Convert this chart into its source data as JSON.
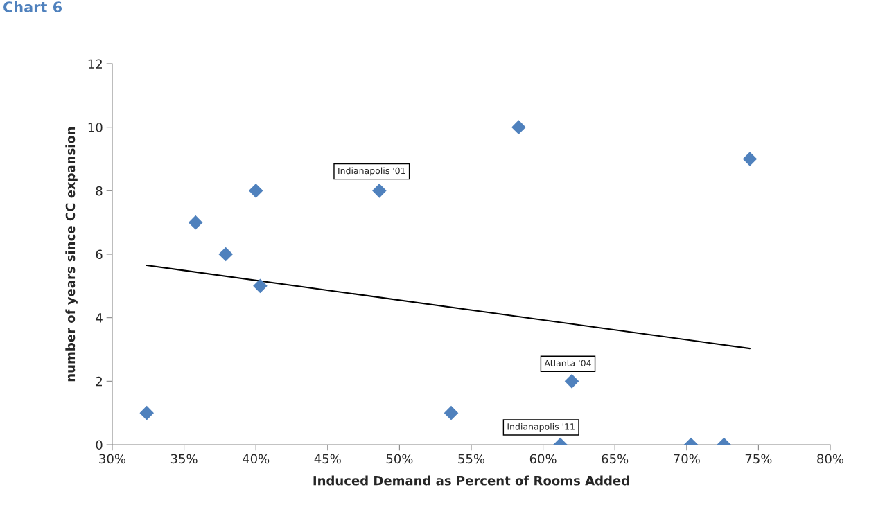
{
  "chart_data": {
    "type": "scatter",
    "title": "Chart 6",
    "xlabel": "Induced Demand as Percent of Rooms Added",
    "ylabel": "number of years since CC expansion",
    "marker": "diamond",
    "grid": false,
    "legend": false,
    "xlim": [
      30,
      80
    ],
    "xticks": [
      {
        "value": 30,
        "label": "30%"
      },
      {
        "value": 35,
        "label": "35%"
      },
      {
        "value": 40,
        "label": "40%"
      },
      {
        "value": 45,
        "label": "45%"
      },
      {
        "value": 50,
        "label": "50%"
      },
      {
        "value": 55,
        "label": "55%"
      },
      {
        "value": 60,
        "label": "60%"
      },
      {
        "value": 65,
        "label": "65%"
      },
      {
        "value": 70,
        "label": "70%"
      },
      {
        "value": 75,
        "label": "75%"
      },
      {
        "value": 80,
        "label": "80%"
      }
    ],
    "ylim": [
      0,
      12
    ],
    "yticks": [
      0,
      2,
      4,
      6,
      8,
      10,
      12
    ],
    "series": [
      {
        "color": "#4f81bd",
        "x": [
          32.4,
          35.8,
          37.9,
          40.0,
          40.3,
          48.6,
          53.6,
          58.3,
          61.2,
          62.0,
          70.3,
          72.6,
          74.4
        ],
        "values": [
          1,
          7,
          6,
          8,
          5,
          8,
          1,
          10,
          0,
          2,
          0,
          0,
          9
        ]
      },
      {
        "type": "line",
        "color": "#000000",
        "marker": "none",
        "x": [
          32.4,
          74.4
        ],
        "values": [
          5.65,
          3.03
        ]
      }
    ],
    "annotations": [
      {
        "text": "Indianapolis '01",
        "x": 48.6,
        "y": 8
      },
      {
        "text": "Atlanta '04",
        "x": 62.0,
        "y": 2
      },
      {
        "text": "Indianapolis '11",
        "x": 61.2,
        "y": 0
      }
    ]
  }
}
